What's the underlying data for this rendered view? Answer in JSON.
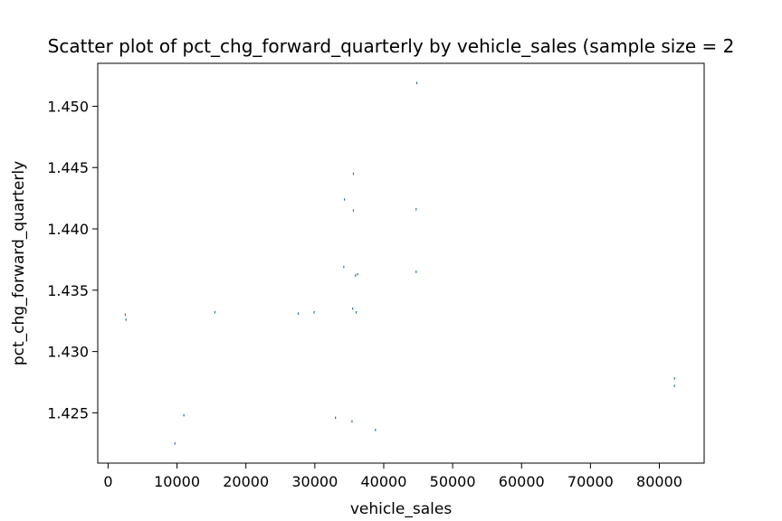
{
  "chart_data": {
    "type": "scatter",
    "title": "Scatter plot of pct_chg_forward_quarterly by vehicle_sales (sample size = 2",
    "xlabel": "vehicle_sales",
    "ylabel": "pct_chg_forward_quarterly",
    "xlim": [
      -1500,
      86500
    ],
    "ylim": [
      1.4209,
      1.4535
    ],
    "xticks": [
      0,
      10000,
      20000,
      30000,
      40000,
      50000,
      60000,
      70000,
      80000
    ],
    "xtick_labels": [
      "0",
      "10000",
      "20000",
      "30000",
      "40000",
      "50000",
      "60000",
      "70000",
      "80000"
    ],
    "yticks": [
      1.425,
      1.43,
      1.435,
      1.44,
      1.445,
      1.45
    ],
    "ytick_labels": [
      "1.425",
      "1.430",
      "1.435",
      "1.440",
      "1.445",
      "1.450"
    ],
    "grid": false,
    "marker_color": "#1f77b4",
    "series": [
      {
        "points": [
          [
            44800,
            1.4519
          ],
          [
            35600,
            1.4445
          ],
          [
            34300,
            1.4424
          ],
          [
            35600,
            1.4415
          ],
          [
            44700,
            1.4416
          ],
          [
            34200,
            1.4369
          ],
          [
            44700,
            1.4365
          ],
          [
            35900,
            1.4362
          ],
          [
            36200,
            1.4363
          ],
          [
            35500,
            1.4335
          ],
          [
            36000,
            1.4332
          ],
          [
            15500,
            1.4332
          ],
          [
            2500,
            1.433
          ],
          [
            2600,
            1.4326
          ],
          [
            29900,
            1.4332
          ],
          [
            27600,
            1.4331
          ],
          [
            9700,
            1.4225
          ],
          [
            38800,
            1.4236
          ],
          [
            35400,
            1.4243
          ],
          [
            33000,
            1.4246
          ],
          [
            11000,
            1.4248
          ],
          [
            82200,
            1.4278
          ],
          [
            82200,
            1.4272
          ]
        ]
      }
    ]
  }
}
